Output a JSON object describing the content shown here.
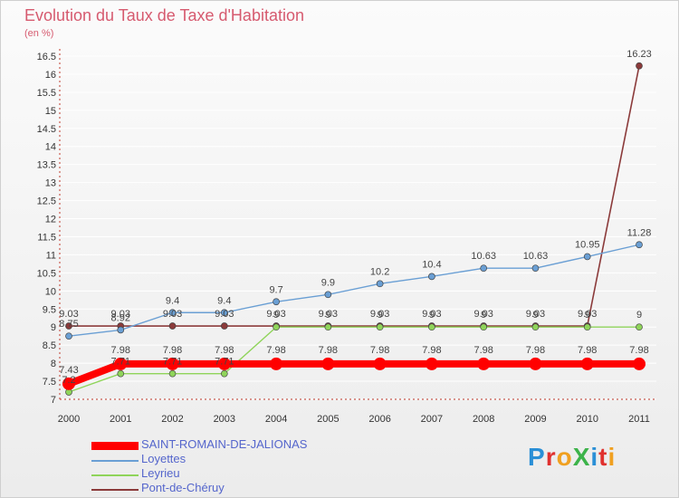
{
  "chart_data": {
    "type": "line",
    "title": "Evolution du Taux de Taxe d'Habitation",
    "subtitle": "(en %)",
    "xlabel": "",
    "ylabel": "",
    "categories": [
      "2000",
      "2001",
      "2002",
      "2003",
      "2004",
      "2005",
      "2006",
      "2007",
      "2008",
      "2009",
      "2010",
      "2011"
    ],
    "ylim": [
      7,
      16.5
    ],
    "yticks": [
      "7",
      "7.5",
      "8",
      "8.5",
      "9",
      "9.5",
      "10",
      "10.5",
      "11",
      "11.5",
      "12",
      "12.5",
      "13",
      "13.5",
      "14",
      "14.5",
      "15",
      "15.5",
      "16",
      "16.5"
    ],
    "legend_position": "bottom-left",
    "series": [
      {
        "name": "SAINT-ROMAIN-DE-JALIONAS",
        "color": "#ff0000",
        "values": [
          7.43,
          7.98,
          7.98,
          7.98,
          7.98,
          7.98,
          7.98,
          7.98,
          7.98,
          7.98,
          7.98,
          7.98
        ],
        "labels": [
          "7.43",
          "7.98",
          "7.98",
          "7.98",
          "7.98",
          "7.98",
          "7.98",
          "7.98",
          "7.98",
          "7.98",
          "7.98",
          "7.98"
        ]
      },
      {
        "name": "Loyettes",
        "color": "#6a9fd4",
        "values": [
          8.75,
          8.92,
          9.4,
          9.4,
          9.7,
          9.9,
          10.2,
          10.4,
          10.63,
          10.63,
          10.95,
          11.28
        ],
        "labels": [
          "8.75",
          "8.92",
          "9.4",
          "9.4",
          "9.7",
          "9.9",
          "10.2",
          "10.4",
          "10.63",
          "10.63",
          "10.95",
          "11.28"
        ]
      },
      {
        "name": "Leyrieu",
        "color": "#8fd45a",
        "values": [
          7.2,
          7.71,
          7.71,
          7.71,
          9.0,
          9.0,
          9.0,
          9.0,
          9.0,
          9.0,
          9.0,
          9.0
        ],
        "labels": [
          "7.2",
          "7.71",
          "7.71",
          "7.71",
          "9",
          "9",
          "9",
          "9",
          "9",
          "9",
          "9",
          "9"
        ]
      },
      {
        "name": "Pont-de-Chéruy",
        "color": "#8b3a3a",
        "values": [
          9.03,
          9.03,
          9.03,
          9.03,
          9.03,
          9.03,
          9.03,
          9.03,
          9.03,
          9.03,
          9.03,
          16.23
        ],
        "labels": [
          "9.03",
          "9.03",
          "9.03",
          "9.03",
          "9.03",
          "9.03",
          "9.03",
          "9.03",
          "9.03",
          "9.03",
          "9.03",
          "16.23"
        ]
      }
    ]
  },
  "brand": {
    "text": "ProXiti",
    "letters": [
      "P",
      "r",
      "o",
      "X",
      "i",
      "t",
      "i"
    ],
    "colors": [
      "#2a8fd6",
      "#e0312f",
      "#f0a020",
      "#3cb34a",
      "#2a8fd6",
      "#e0312f",
      "#f0a020"
    ]
  }
}
